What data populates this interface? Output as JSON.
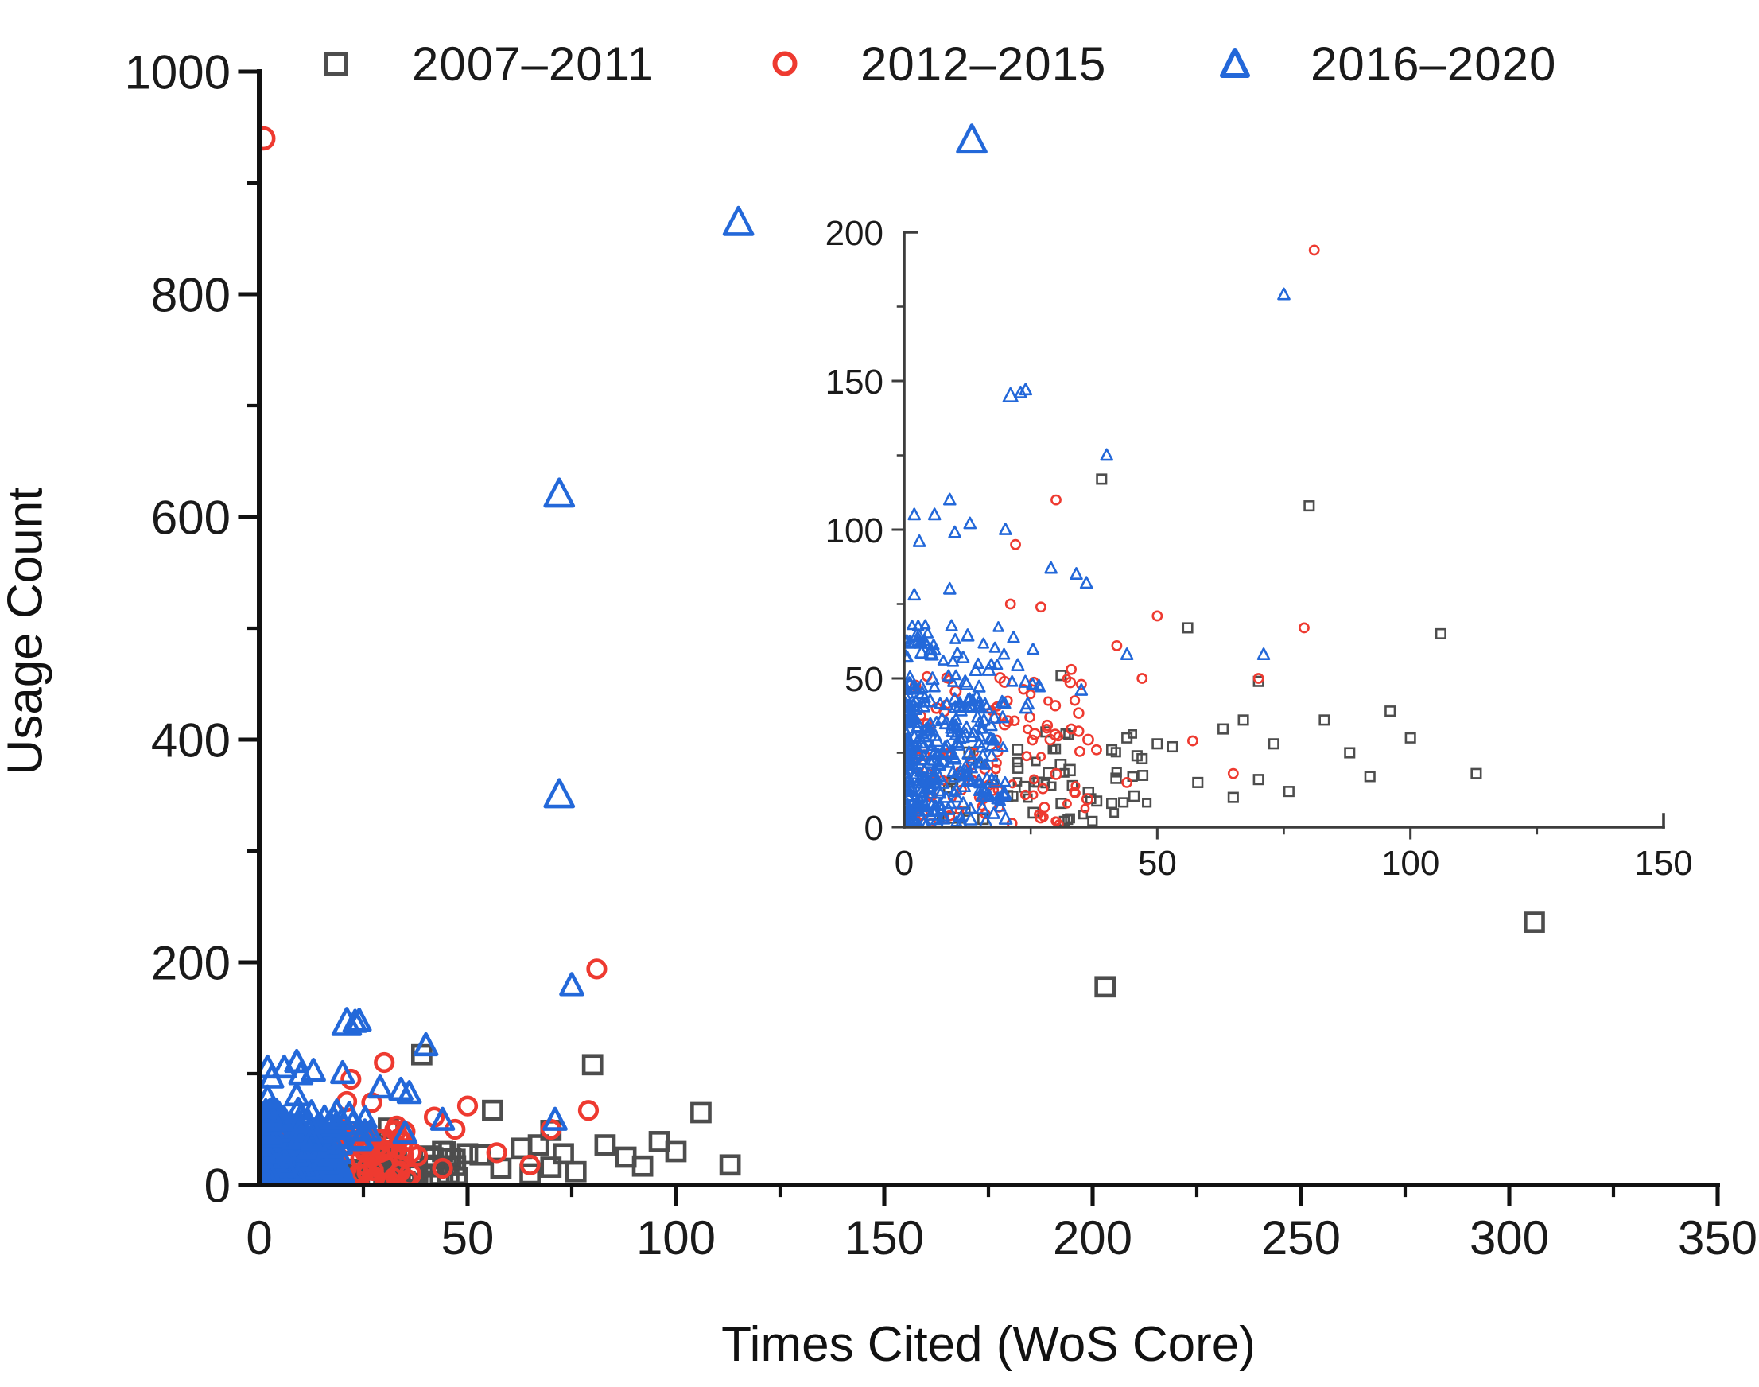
{
  "figure": {
    "background": "#ffffff"
  },
  "chart_data": {
    "type": "scatter",
    "title": "",
    "xlabel": "Times Cited (WoS Core)",
    "ylabel": "Usage Count",
    "grid": false,
    "legend_position": "top",
    "main_axes": {
      "xlim": [
        0,
        350
      ],
      "ylim": [
        0,
        1000
      ],
      "xticks": [
        0,
        50,
        100,
        150,
        200,
        250,
        300,
        350
      ],
      "yticks": [
        0,
        200,
        400,
        600,
        800,
        1000
      ],
      "xminor_step": 25,
      "yminor_step": 100
    },
    "inset_axes": {
      "xlim": [
        0,
        150
      ],
      "ylim": [
        0,
        200
      ],
      "xticks": [
        0,
        50,
        100,
        150
      ],
      "yticks": [
        0,
        50,
        100,
        150,
        200
      ],
      "xminor_step": 25,
      "yminor_step": 25
    },
    "legend": [
      {
        "label": "2007–2011",
        "marker": "square",
        "color": "#4d4d4d"
      },
      {
        "label": "2012–2015",
        "marker": "circle",
        "color": "#ee3a30"
      },
      {
        "label": "2016–2020",
        "marker": "triangle",
        "color": "#2368d9"
      }
    ],
    "series": [
      {
        "name": "2007–2011",
        "marker": "square",
        "color": "#4d4d4d",
        "points": [
          [
            306,
            236
          ],
          [
            203,
            178
          ],
          [
            39,
            117
          ],
          [
            80,
            108
          ],
          [
            56,
            67
          ],
          [
            106,
            65
          ],
          [
            31,
            51
          ],
          [
            70,
            49
          ],
          [
            96,
            39
          ],
          [
            83,
            36
          ],
          [
            67,
            36
          ],
          [
            63,
            33
          ],
          [
            28,
            32
          ],
          [
            44,
            30
          ],
          [
            100,
            30
          ],
          [
            50,
            28
          ],
          [
            73,
            28
          ],
          [
            53,
            27
          ],
          [
            41,
            26
          ],
          [
            88,
            25
          ],
          [
            46,
            24
          ],
          [
            47,
            23
          ],
          [
            113,
            18
          ],
          [
            92,
            17
          ],
          [
            70,
            16
          ],
          [
            58,
            15
          ],
          [
            76,
            12
          ],
          [
            65,
            10
          ],
          [
            41,
            8
          ],
          [
            31,
            8
          ]
        ],
        "clusters": [
          {
            "seed": 11,
            "n": 55,
            "xbase": 7,
            "xspan": 42,
            "xpow": 1.15,
            "ybase": 2,
            "yspan": 30,
            "ypow": 1.3
          }
        ]
      },
      {
        "name": "2012–2015",
        "marker": "circle",
        "color": "#ee3a30",
        "points": [
          [
            1,
            940,
            1.2
          ],
          [
            81,
            194
          ],
          [
            30,
            110
          ],
          [
            22,
            95
          ],
          [
            21,
            75
          ],
          [
            27,
            74
          ],
          [
            50,
            71
          ],
          [
            79,
            67
          ],
          [
            42,
            61
          ],
          [
            33,
            53
          ],
          [
            47,
            50
          ],
          [
            70,
            50
          ],
          [
            35,
            48
          ],
          [
            33,
            33
          ],
          [
            57,
            29
          ],
          [
            65,
            18
          ],
          [
            44,
            15
          ],
          [
            38,
            26
          ]
        ],
        "clusters": [
          {
            "seed": 7,
            "n": 100,
            "xbase": 2,
            "xspan": 36,
            "xpow": 1.35,
            "ybase": 1,
            "yspan": 50,
            "ypow": 1.2
          }
        ]
      },
      {
        "name": "2016–2020",
        "marker": "triangle",
        "color": "#2368d9",
        "points": [
          [
            171,
            938,
            1.3
          ],
          [
            115,
            864,
            1.3
          ],
          [
            72,
            620,
            1.3
          ],
          [
            72,
            350,
            1.3
          ],
          [
            75,
            179
          ],
          [
            24,
            147
          ],
          [
            23,
            146
          ],
          [
            21,
            145,
            1.25
          ],
          [
            40,
            125
          ],
          [
            9,
            110
          ],
          [
            2,
            105
          ],
          [
            6,
            105
          ],
          [
            13,
            102
          ],
          [
            20,
            100
          ],
          [
            10,
            99
          ],
          [
            3,
            96
          ],
          [
            29,
            87
          ],
          [
            34,
            85
          ],
          [
            36,
            82
          ],
          [
            9,
            80
          ],
          [
            2,
            78
          ],
          [
            71,
            58
          ],
          [
            44,
            58
          ],
          [
            35,
            46
          ]
        ],
        "clusters": [
          {
            "seed": 3,
            "n": 300,
            "xbase": 0.2,
            "xspan": 20,
            "xpow": 1.8,
            "ybase": 0.5,
            "yspan": 42,
            "ypow": 1.15
          },
          {
            "seed": 5,
            "n": 80,
            "xbase": 0.2,
            "xspan": 27,
            "xpow": 1.5,
            "ybase": 40,
            "yspan": 28,
            "ypow": 1.0
          }
        ]
      }
    ]
  }
}
